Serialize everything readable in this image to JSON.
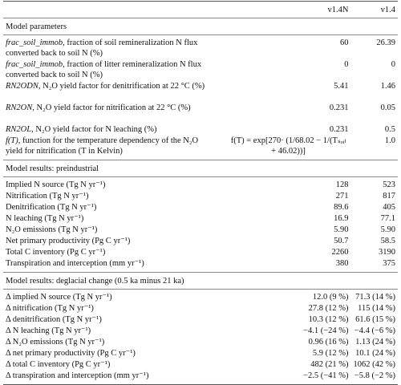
{
  "table": {
    "columns": [
      "v1.4N",
      "v1.4"
    ],
    "sections": [
      {
        "title": "Model parameters",
        "rows": [
          {
            "name": "frac_soil_immob",
            "label": ", fraction of soil remineralization N flux converted back to soil N (%)",
            "values": [
              "60",
              "26.39"
            ]
          },
          {
            "name": "frac_soil_immob",
            "label": ", fraction of litter remineralization N flux converted back to soil N (%)",
            "values": [
              "0",
              "0"
            ]
          },
          {
            "name": "RN2ODN",
            "label": ", N₂O yield factor for denitrification at 22 °C (%)",
            "values": [
              "5.41",
              "1.46"
            ]
          },
          {
            "name": "RN2ON",
            "label": ", N₂O yield factor for nitrification at 22 °C (%)",
            "values": [
              "0.231",
              "0.05"
            ]
          },
          {
            "name": "RN2OL",
            "label": ", N₂O yield factor for N leaching (%)",
            "values": [
              "0.231",
              "0.5"
            ]
          },
          {
            "name": "f(T)",
            "label": ", function for the temperature dependency of the N₂O yield for nitrification (T in Kelvin)",
            "values": [
              "f(T) = exp[270· (1/68.02 − 1/(Tₛₒᵢₗ + 46.02))]",
              "1.0"
            ]
          }
        ]
      },
      {
        "title": "Model results: preindustrial",
        "rows": [
          {
            "label": "Implied N source (Tg N yr⁻¹)",
            "values": [
              "128",
              "523"
            ]
          },
          {
            "label": "Nitrification (Tg N yr⁻¹)",
            "values": [
              "271",
              "817"
            ]
          },
          {
            "label": "Denitrification (Tg N yr⁻¹)",
            "values": [
              "89.6",
              "405"
            ]
          },
          {
            "label": "N leaching (Tg N yr⁻¹)",
            "values": [
              "16.9",
              "77.1"
            ]
          },
          {
            "label": "N₂O emissions (Tg N yr⁻¹)",
            "values": [
              "5.90",
              "5.90"
            ]
          },
          {
            "label": "Net primary productivity (Pg C yr⁻¹)",
            "values": [
              "50.7",
              "58.5"
            ]
          },
          {
            "label": "Total C inventory (Pg C yr⁻¹)",
            "values": [
              "2260",
              "3190"
            ]
          },
          {
            "label": "Transpiration and interception (mm yr⁻¹)",
            "values": [
              "380",
              "375"
            ]
          }
        ]
      },
      {
        "title": "Model results: deglacial change (0.5 ka minus 21 ka)",
        "rows": [
          {
            "label": "Δ implied N source (Tg N yr⁻¹)",
            "values": [
              "12.0 (9 %)",
              "71.3 (14 %)"
            ]
          },
          {
            "label": "Δ nitrification (Tg N yr⁻¹)",
            "values": [
              "27.8 (12 %)",
              "115 (14 %)"
            ]
          },
          {
            "label": "Δ denitrification (Tg N yr⁻¹)",
            "values": [
              "10.3 (12 %)",
              "61.6 (15 %)"
            ]
          },
          {
            "label": "Δ N leaching (Tg N yr⁻¹)",
            "values": [
              "−4.1 (−24 %)",
              "−4.4 (−6 %)"
            ]
          },
          {
            "label": "Δ N₂O emissions (Tg N yr⁻¹)",
            "values": [
              "0.96 (16 %)",
              "1.13 (24 %)"
            ]
          },
          {
            "label": "Δ net primary productivity (Pg C yr⁻¹)",
            "values": [
              "5.9 (12 %)",
              "10.1 (24 %)"
            ]
          },
          {
            "label": "Δ total C inventory (Pg C yr⁻¹)",
            "values": [
              "482 (21 %)",
              "1062 (42 %)"
            ]
          },
          {
            "label": "Δ transpiration and interception (mm yr⁻¹)",
            "values": [
              "−2.5 (−41 %)",
              "−5.8 (−2 %)"
            ]
          }
        ]
      }
    ]
  }
}
